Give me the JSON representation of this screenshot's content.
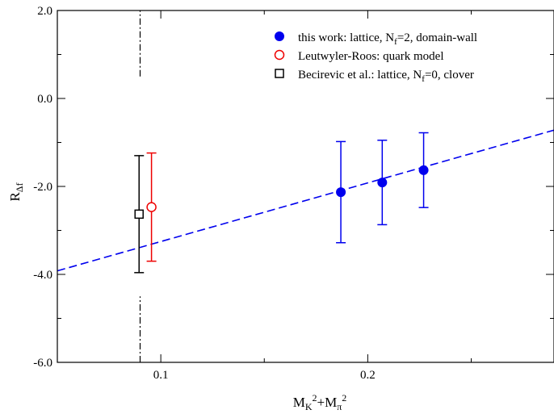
{
  "chart_data": {
    "type": "scatter",
    "title": "",
    "xlabel": {
      "base": "M",
      "sub1": "K",
      "sup1": "2",
      "mid": "+M",
      "sub2": "π",
      "sup2": "2"
    },
    "ylabel": {
      "base": "R",
      "sub": "Δf"
    },
    "xlim": [
      0.05,
      0.29
    ],
    "ylim": [
      -6.0,
      2.0
    ],
    "x_major_ticks": [
      0.1,
      0.2
    ],
    "x_tick_labels": [
      "0.1",
      "0.2"
    ],
    "x_minor_ticks": [
      0.05,
      0.15,
      0.25
    ],
    "y_major_ticks": [
      -6.0,
      -4.0,
      -2.0,
      0.0,
      2.0
    ],
    "y_tick_labels": [
      "-6.0",
      "-4.0",
      "-2.0",
      "0.0",
      "2.0"
    ],
    "y_minor_ticks": [
      -5.0,
      -3.0,
      -1.0,
      1.0
    ],
    "grid": false,
    "legend_position": "top-right",
    "series": [
      {
        "name_parts": {
          "pre": "this work:  lattice,  N",
          "sub": "f",
          "post": "=2,  domain-wall"
        },
        "marker": "filled-circle",
        "color": "#0000ee",
        "x": [
          0.187,
          0.207,
          0.227
        ],
        "y": [
          -2.13,
          -1.91,
          -1.63
        ],
        "yerr": [
          1.15,
          0.96,
          0.85
        ]
      },
      {
        "name_parts": {
          "pre": "Leutwyler-Roos:  quark model",
          "sub": "",
          "post": ""
        },
        "marker": "open-circle",
        "color": "#ee0000",
        "x": [
          0.0955
        ],
        "y": [
          -2.47
        ],
        "yerr": [
          1.23
        ]
      },
      {
        "name_parts": {
          "pre": "Becirevic et al.:  lattice,  N",
          "sub": "f",
          "post": "=0,  clover"
        },
        "marker": "open-square",
        "color": "#000000",
        "x": [
          0.0895
        ],
        "y": [
          -2.63
        ],
        "yerr": [
          1.33
        ]
      }
    ],
    "fit_line": {
      "style": "dashed",
      "color": "#0000ee",
      "x": [
        0.05,
        0.29
      ],
      "y": [
        -3.92,
        -0.72
      ]
    },
    "reference_line": {
      "style": "dash-dot",
      "color": "#000000",
      "x": 0.09,
      "segments": [
        [
          0.5,
          2.0
        ],
        [
          -6.0,
          -4.5
        ]
      ]
    }
  }
}
